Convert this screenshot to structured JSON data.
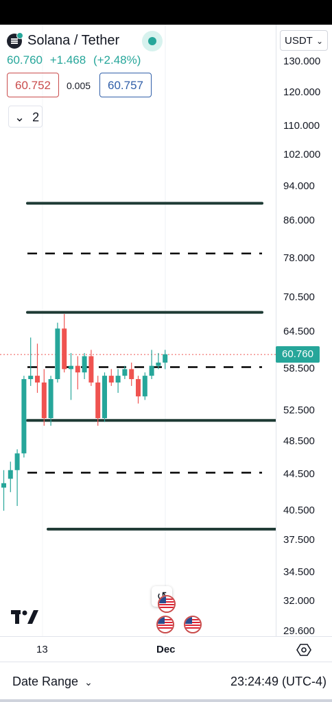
{
  "symbol": {
    "title": "Solana / Tether",
    "last": "60.760",
    "change": "+1.468",
    "change_pct": "(+2.48%)"
  },
  "quote": {
    "bid": "60.752",
    "spread": "0.005",
    "ask": "60.757"
  },
  "indicators_toggle": {
    "count": "2"
  },
  "currency": {
    "selected": "USDT"
  },
  "price_axis": {
    "ticks": [
      {
        "label": "130.000",
        "v": 130
      },
      {
        "label": "120.000",
        "v": 120
      },
      {
        "label": "110.000",
        "v": 110
      },
      {
        "label": "102.000",
        "v": 102
      },
      {
        "label": "94.000",
        "v": 94
      },
      {
        "label": "86.000",
        "v": 86
      },
      {
        "label": "78.000",
        "v": 78
      },
      {
        "label": "70.500",
        "v": 70.5
      },
      {
        "label": "64.500",
        "v": 64.5
      },
      {
        "label": "58.500",
        "v": 58.5
      },
      {
        "label": "52.500",
        "v": 52.5
      },
      {
        "label": "48.500",
        "v": 48.5
      },
      {
        "label": "44.500",
        "v": 44.5
      },
      {
        "label": "40.500",
        "v": 40.5
      },
      {
        "label": "37.500",
        "v": 37.5
      },
      {
        "label": "34.500",
        "v": 34.5
      },
      {
        "label": "32.000",
        "v": 32
      },
      {
        "label": "29.600",
        "v": 29.6
      }
    ],
    "current_price": "60.760"
  },
  "time_axis": {
    "labels": [
      {
        "text": "13"
      },
      {
        "text": "Dec"
      }
    ]
  },
  "footer": {
    "date_range": "Date Range",
    "clock": "23:24:49 (UTC-4)"
  },
  "colors": {
    "up": "#26a69a",
    "down": "#ef5350",
    "level": "#1e3a34",
    "accent": "#26a69a"
  },
  "chart_data": {
    "type": "candlestick",
    "scale": "log",
    "ylim": [
      29.6,
      130.0
    ],
    "current_price": 60.76,
    "candles": [
      {
        "o": 43.0,
        "h": 45.0,
        "l": 40.5,
        "c": 43.5
      },
      {
        "o": 44.0,
        "h": 46.0,
        "l": 42.5,
        "c": 45.0
      },
      {
        "o": 45.0,
        "h": 47.5,
        "l": 41.0,
        "c": 47.0
      },
      {
        "o": 47.0,
        "h": 57.5,
        "l": 46.5,
        "c": 57.0
      },
      {
        "o": 57.0,
        "h": 63.5,
        "l": 56.0,
        "c": 57.5
      },
      {
        "o": 57.5,
        "h": 62.5,
        "l": 55.0,
        "c": 56.5
      },
      {
        "o": 56.5,
        "h": 58.5,
        "l": 50.5,
        "c": 51.5
      },
      {
        "o": 51.5,
        "h": 57.5,
        "l": 50.5,
        "c": 57.0
      },
      {
        "o": 57.0,
        "h": 66.0,
        "l": 56.5,
        "c": 65.0
      },
      {
        "o": 65.0,
        "h": 67.5,
        "l": 58.0,
        "c": 58.5
      },
      {
        "o": 58.5,
        "h": 61.0,
        "l": 54.0,
        "c": 59.0
      },
      {
        "o": 59.0,
        "h": 60.5,
        "l": 55.5,
        "c": 58.0
      },
      {
        "o": 58.0,
        "h": 61.0,
        "l": 57.0,
        "c": 60.5
      },
      {
        "o": 60.5,
        "h": 61.5,
        "l": 56.0,
        "c": 56.5
      },
      {
        "o": 56.5,
        "h": 57.5,
        "l": 50.5,
        "c": 51.5
      },
      {
        "o": 51.5,
        "h": 58.0,
        "l": 51.0,
        "c": 57.5
      },
      {
        "o": 57.5,
        "h": 58.5,
        "l": 56.0,
        "c": 56.5
      },
      {
        "o": 56.5,
        "h": 58.5,
        "l": 55.0,
        "c": 57.5
      },
      {
        "o": 57.5,
        "h": 59.0,
        "l": 57.0,
        "c": 58.5
      },
      {
        "o": 58.5,
        "h": 59.5,
        "l": 56.0,
        "c": 57.0
      },
      {
        "o": 57.0,
        "h": 57.5,
        "l": 53.5,
        "c": 54.5
      },
      {
        "o": 54.5,
        "h": 58.0,
        "l": 54.0,
        "c": 57.5
      },
      {
        "o": 57.5,
        "h": 61.5,
        "l": 57.0,
        "c": 59.0
      },
      {
        "o": 59.0,
        "h": 61.0,
        "l": 58.5,
        "c": 59.5
      },
      {
        "o": 59.5,
        "h": 61.5,
        "l": 58.5,
        "c": 60.8
      }
    ],
    "levels": [
      {
        "v": 90.0,
        "style": "solid"
      },
      {
        "v": 79.0,
        "style": "dashed"
      },
      {
        "v": 67.8,
        "style": "solid"
      },
      {
        "v": 58.8,
        "style": "dashed"
      },
      {
        "v": 51.2,
        "style": "solid"
      },
      {
        "v": 44.7,
        "style": "dashed"
      },
      {
        "v": 38.6,
        "style": "solid"
      }
    ]
  }
}
